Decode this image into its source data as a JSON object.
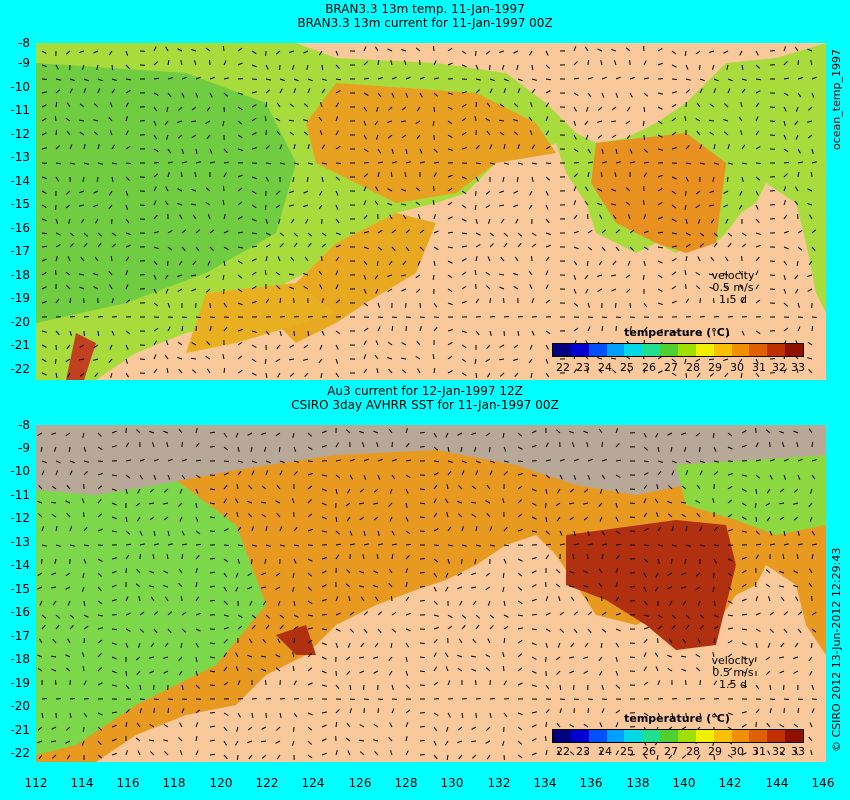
{
  "top_panel": {
    "title_line1": "BRAN3.3 13m temp. 11-Jan-1997",
    "title_line2": "BRAN3.3 13m current for 11-Jan-1997 00Z",
    "side_label": "ocean_temp_1997"
  },
  "bottom_panel": {
    "title_line1": "Au3 current for 12-Jan-1997 12Z",
    "title_line2": "CSIRO 3day AVHRR SST for 11-Jan-1997 00Z",
    "side_label": "© CSIRO 2012   13-Jun-2012 12:29:43"
  },
  "velocity": {
    "line1": "velocity",
    "line2": "0.5 m/s",
    "line3": "1.5 d"
  },
  "legend": {
    "title": "temperature (°C)",
    "ticks": [
      "22",
      "23",
      "24",
      "25",
      "26",
      "27",
      "28",
      "29",
      "30",
      "31",
      "32",
      "33"
    ],
    "colors": [
      "#000080",
      "#0000d0",
      "#0050ff",
      "#00a0ff",
      "#00d8e8",
      "#20e090",
      "#50d030",
      "#a0e000",
      "#f0f000",
      "#f8c000",
      "#f09000",
      "#e06000",
      "#c03000",
      "#901000"
    ]
  },
  "y_ticks": [
    "-8",
    "-9",
    "-10",
    "-11",
    "-12",
    "-13",
    "-14",
    "-15",
    "-16",
    "-17",
    "-18",
    "-19",
    "-20",
    "-21",
    "-22"
  ],
  "x_ticks": [
    "112",
    "114",
    "116",
    "118",
    "120",
    "122",
    "124",
    "126",
    "128",
    "130",
    "132",
    "134",
    "136",
    "138",
    "140",
    "142",
    "144",
    "146"
  ],
  "colors": {
    "background": "#00ffff",
    "land": "#f9c99b",
    "cloud": "#b8a898",
    "warm": "#e89a20",
    "cool": "#7cd84a",
    "hot": "#b03010"
  }
}
